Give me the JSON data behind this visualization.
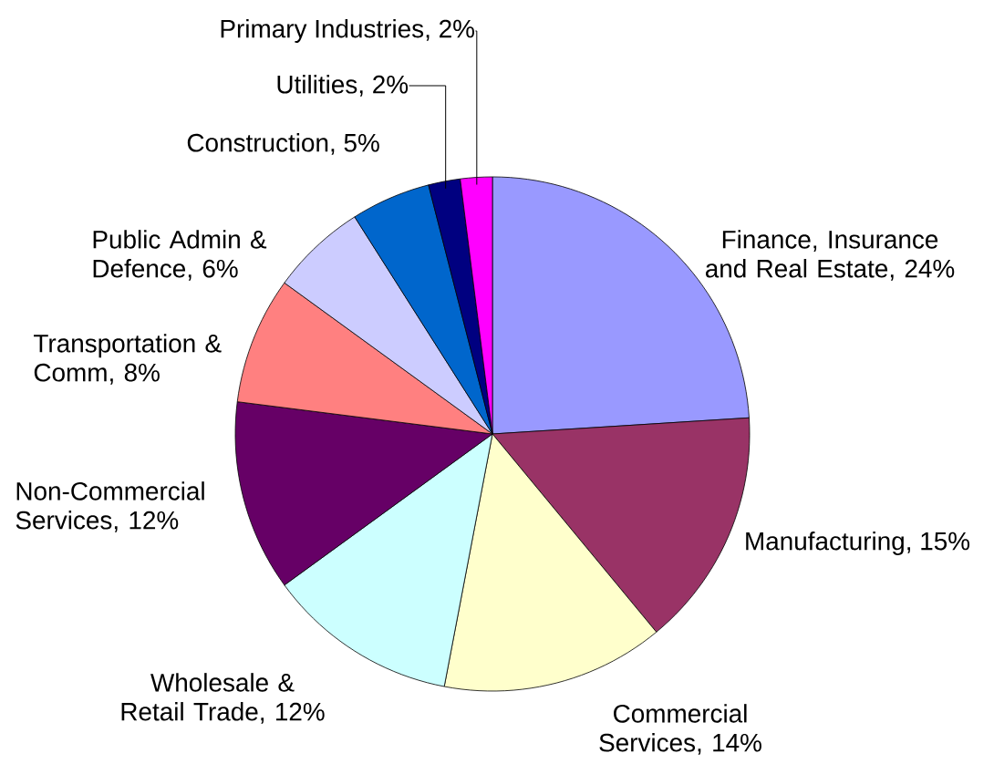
{
  "chart_data": {
    "type": "pie",
    "categories": [
      "Finance, Insurance and Real Estate",
      "Manufacturing",
      "Commercial Services",
      "Wholesale & Retail Trade",
      "Non-Commercial Services",
      "Transportation & Comm",
      "Public Admin & Defence",
      "Construction",
      "Utilities",
      "Primary Industries"
    ],
    "values": [
      24,
      15,
      14,
      12,
      12,
      8,
      6,
      5,
      2,
      2
    ],
    "colors": [
      "#9999ff",
      "#993366",
      "#ffffcc",
      "#ccffff",
      "#660066",
      "#ff8080",
      "#ccccff",
      "#0066cc",
      "#000080",
      "#ff00ff"
    ],
    "value_labels": [
      ", 24%",
      ", 15%",
      ", 14%",
      ", 12%",
      ", 12%",
      ", 8%",
      ", 6%",
      ", 5%",
      ", 2%",
      ", 2%"
    ]
  }
}
